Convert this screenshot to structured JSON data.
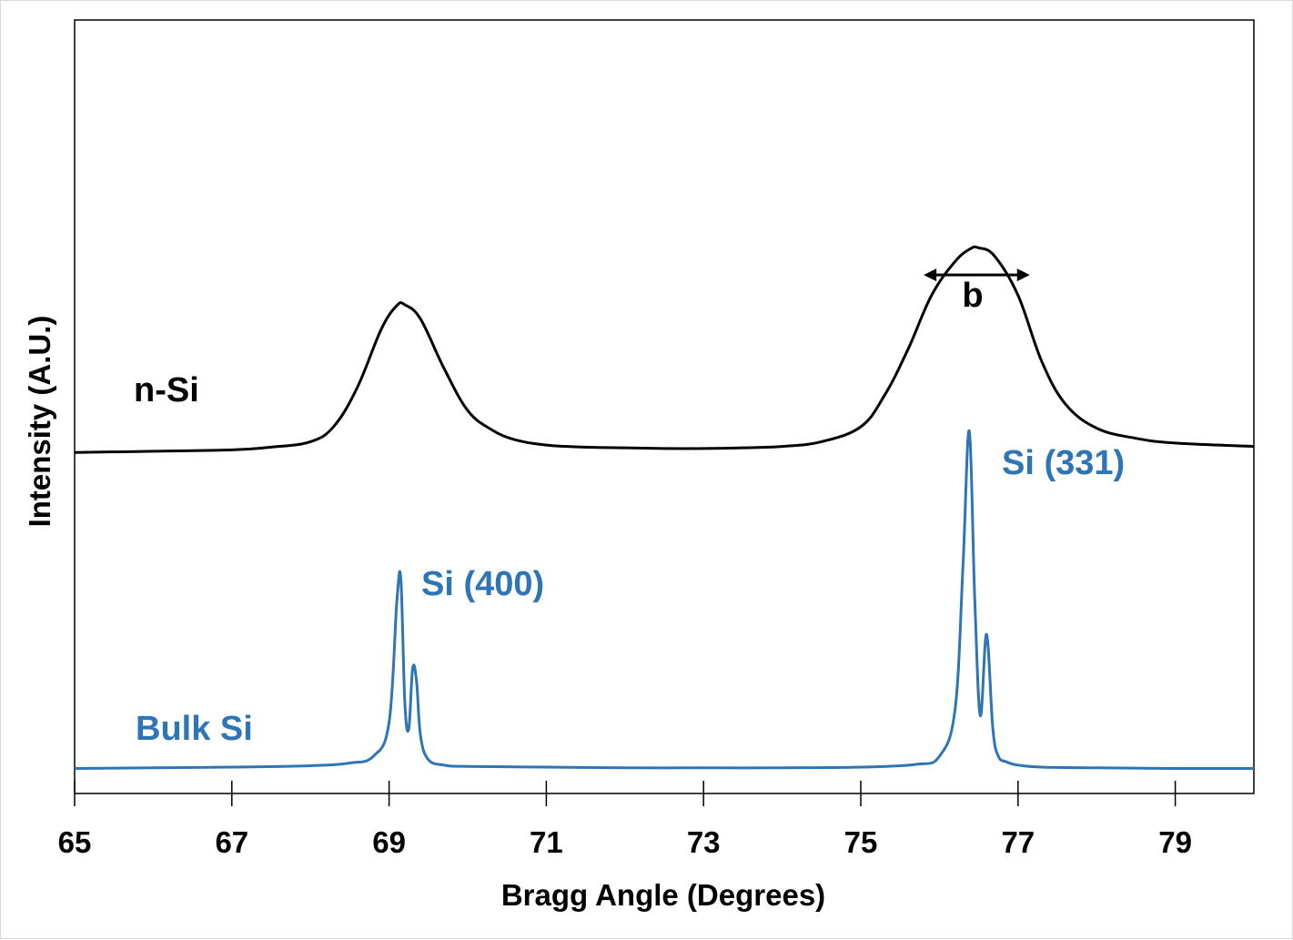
{
  "chart_data": {
    "type": "line",
    "title": "",
    "xlabel": "Bragg Angle (Degrees)",
    "ylabel": "Intensity (A.U.)",
    "xlim": [
      65,
      80
    ],
    "xticks": [
      65,
      67,
      69,
      71,
      73,
      75,
      77,
      79
    ],
    "ylim": [
      0,
      1
    ],
    "y_tick_labels": false,
    "grid": false,
    "legend": "none",
    "colors": {
      "n_si": "#000000",
      "bulk_si": "#2e75b6"
    },
    "series": [
      {
        "name": "n-Si",
        "color": "#000000",
        "x": [
          65.0,
          66.0,
          67.0,
          67.5,
          68.0,
          68.3,
          68.6,
          68.9,
          69.1,
          69.2,
          69.4,
          69.7,
          70.0,
          70.3,
          70.6,
          71.0,
          71.5,
          72.0,
          72.5,
          73.0,
          73.5,
          74.0,
          74.5,
          75.0,
          75.3,
          75.6,
          75.9,
          76.2,
          76.4,
          76.5,
          76.7,
          77.0,
          77.3,
          77.6,
          78.0,
          78.5,
          79.0,
          80.0
        ],
        "y": [
          0.468,
          0.47,
          0.472,
          0.476,
          0.484,
          0.507,
          0.565,
          0.65,
          0.685,
          0.686,
          0.665,
          0.592,
          0.53,
          0.502,
          0.487,
          0.479,
          0.476,
          0.475,
          0.474,
          0.474,
          0.475,
          0.477,
          0.484,
          0.506,
          0.552,
          0.62,
          0.7,
          0.75,
          0.769,
          0.77,
          0.758,
          0.7,
          0.603,
          0.54,
          0.504,
          0.489,
          0.482,
          0.477
        ]
      },
      {
        "name": "Bulk Si",
        "color": "#2e75b6",
        "x": [
          65.0,
          66.0,
          67.0,
          68.0,
          68.5,
          68.8,
          69.0,
          69.1,
          69.15,
          69.2,
          69.25,
          69.3,
          69.35,
          69.4,
          69.5,
          69.7,
          70.0,
          71.0,
          72.0,
          73.0,
          74.0,
          75.0,
          75.7,
          76.0,
          76.2,
          76.3,
          76.38,
          76.45,
          76.52,
          76.6,
          76.68,
          76.75,
          76.85,
          77.0,
          77.3,
          78.0,
          79.0,
          80.0
        ],
        "y": [
          0.002,
          0.003,
          0.004,
          0.006,
          0.01,
          0.02,
          0.07,
          0.25,
          0.28,
          0.1,
          0.06,
          0.15,
          0.13,
          0.05,
          0.015,
          0.007,
          0.005,
          0.004,
          0.003,
          0.003,
          0.003,
          0.004,
          0.008,
          0.02,
          0.09,
          0.3,
          0.5,
          0.25,
          0.08,
          0.2,
          0.06,
          0.02,
          0.012,
          0.007,
          0.004,
          0.003,
          0.002,
          0.002
        ]
      }
    ],
    "annotations": {
      "n_si_label": "n-Si",
      "bulk_si_label": "Bulk Si",
      "peak_400_label": "Si (400)",
      "peak_331_label": "Si (331)",
      "fwhm_label": "b",
      "fwhm_x": [
        75.8,
        77.15
      ],
      "fwhm_y": 0.73
    }
  }
}
